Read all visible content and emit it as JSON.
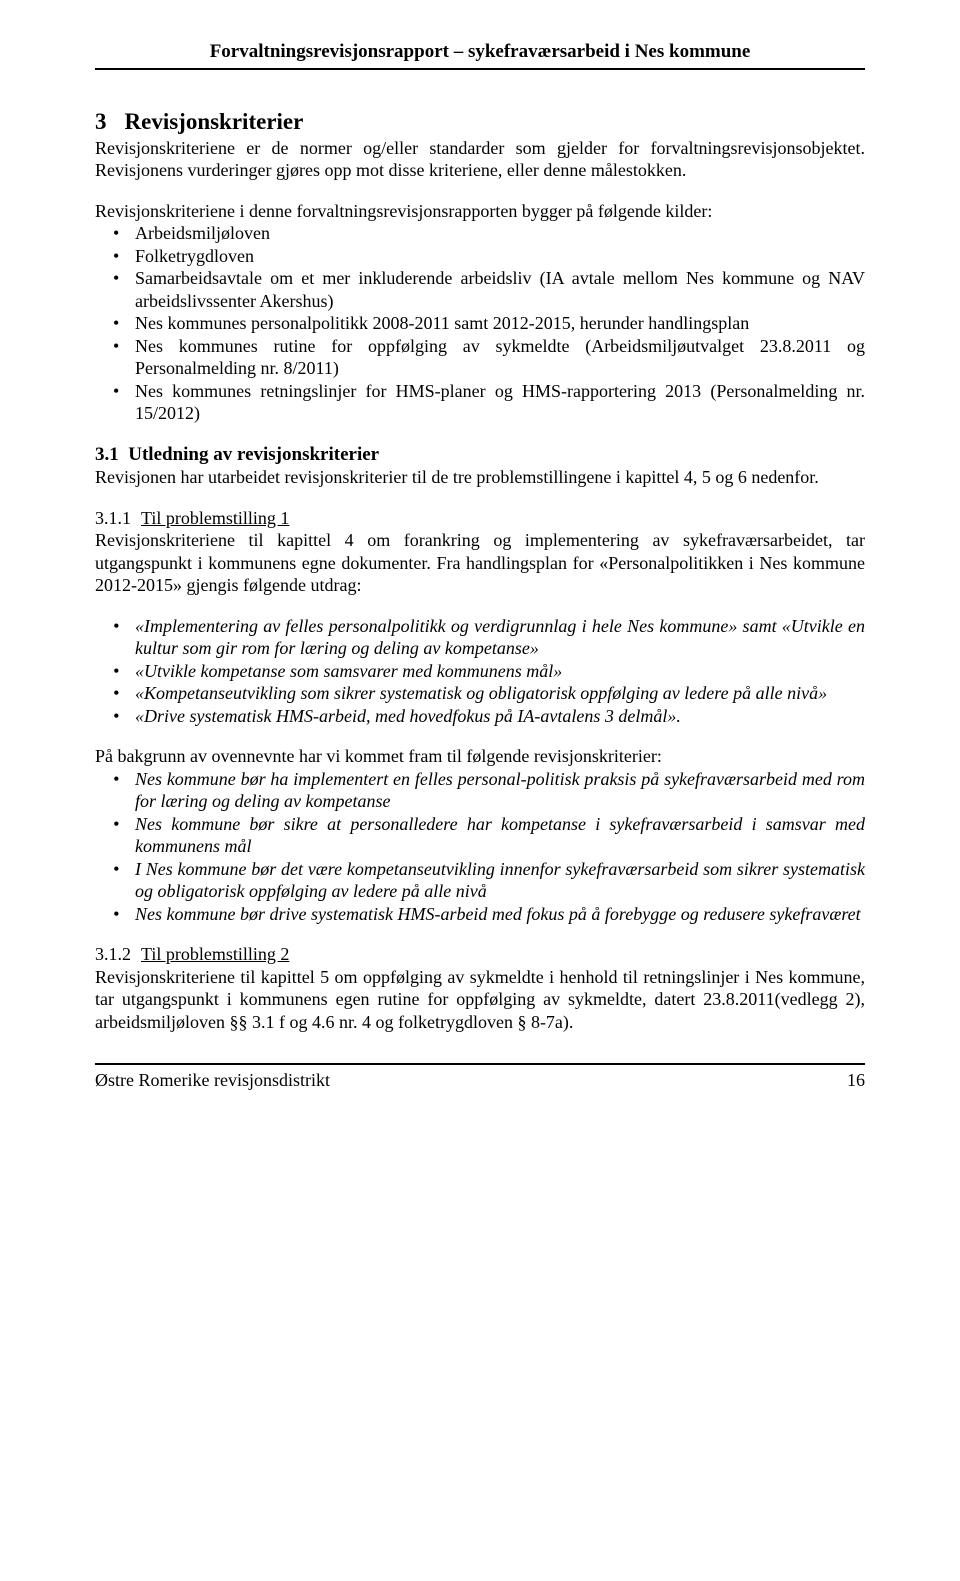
{
  "header": {
    "title": "Forvaltningsrevisjonsrapport – sykefraværsarbeid i Nes kommune"
  },
  "section3": {
    "num": "3",
    "title": "Revisjonskriterier",
    "intro": "Revisjonskriteriene er de normer og/eller standarder som gjelder for forvaltningsrevisjonsobjektet. Revisjonens vurderinger gjøres opp mot disse kriteriene, eller denne målestokken.",
    "sourcesLead": "Revisjonskriteriene i denne forvaltningsrevisjonsrapporten bygger på følgende kilder:",
    "sources": [
      "Arbeidsmiljøloven",
      "Folketrygdloven",
      "Samarbeidsavtale om et mer inkluderende arbeidsliv (IA avtale mellom Nes kommune og NAV arbeidslivssenter Akershus)",
      "Nes kommunes personalpolitikk 2008-2011 samt 2012-2015, herunder handlingsplan",
      "Nes kommunes rutine for oppfølging av sykmeldte (Arbeidsmiljøutvalget 23.8.2011 og Personalmelding nr. 8/2011)",
      "Nes kommunes retningslinjer for HMS-planer og HMS-rapportering 2013 (Personalmelding nr. 15/2012)"
    ]
  },
  "section31": {
    "num": "3.1",
    "title": "Utledning av revisjonskriterier",
    "para": "Revisjonen har utarbeidet revisjonskriterier til de tre problemstillingene i kapittel 4, 5 og 6 nedenfor."
  },
  "section311": {
    "num": "3.1.1",
    "title": "Til problemstilling 1",
    "para": "Revisjonskriteriene til kapittel 4 om forankring og implementering av sykefraværsarbeidet, tar utgangspunkt i kommunens egne dokumenter. Fra handlingsplan for «Personalpolitikken i Nes kommune 2012-2015» gjengis følgende utdrag:",
    "quotes": [
      "«Implementering av felles personalpolitikk og verdigrunnlag i hele Nes kommune» samt «Utvikle en kultur som gir rom for læring og deling av kompetanse»",
      "«Utvikle kompetanse som samsvarer med kommunens mål»",
      "«Kompetanseutvikling som sikrer systematisk og obligatorisk oppfølging av ledere på alle nivå»",
      "«Drive systematisk HMS-arbeid, med hovedfokus på IA-avtalens 3 delmål»."
    ],
    "criteriaLead": "På bakgrunn av ovennevnte har vi kommet fram til følgende revisjonskriterier:",
    "criteria": [
      "Nes kommune bør ha implementert en felles personal-politisk praksis på sykefraværsarbeid med rom for læring og deling av kompetanse",
      "Nes kommune bør sikre at personalledere har kompetanse i sykefraværsarbeid i samsvar med kommunens mål",
      "I Nes kommune bør det være kompetanseutvikling innenfor sykefraværsarbeid som sikrer systematisk og obligatorisk oppfølging av ledere på alle nivå",
      "Nes kommune bør drive systematisk HMS-arbeid med fokus på å forebygge og redusere sykefraværet"
    ]
  },
  "section312": {
    "num": "3.1.2",
    "title": "Til problemstilling 2",
    "para": "Revisjonskriteriene til kapittel 5 om oppfølging av sykmeldte i henhold til retningslinjer i Nes kommune, tar utgangspunkt i kommunens egen rutine for oppfølging av sykmeldte, datert 23.8.2011(vedlegg 2), arbeidsmiljøloven §§ 3.1 f og 4.6 nr. 4 og folketrygdloven § 8-7a)."
  },
  "footer": {
    "org": "Østre Romerike revisjonsdistrikt",
    "page": "16"
  }
}
